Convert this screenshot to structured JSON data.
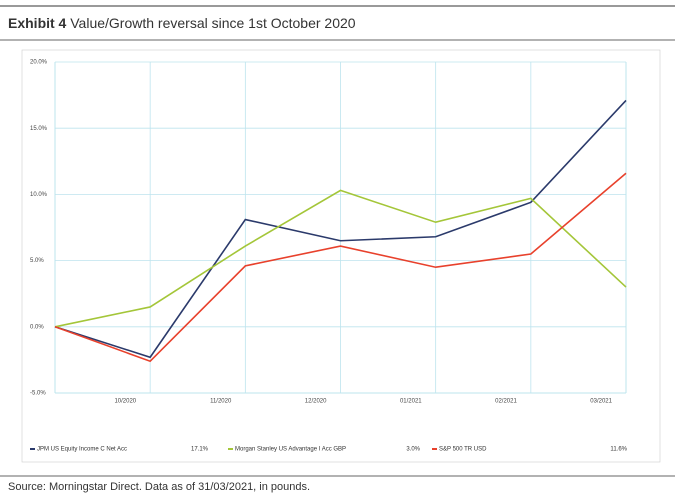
{
  "chart_data": {
    "type": "line",
    "title_bold": "Exhibit 4",
    "title": "Value/Growth reversal since 1st October 2020",
    "source": "Source: Morningstar Direct. Data as of 31/03/2021, in pounds.",
    "categories": [
      null,
      "10/2020",
      "11/2020",
      "12/2020",
      "01/2021",
      "02/2021",
      "03/2021"
    ],
    "series": [
      {
        "name": "JPM US Equity Income C Net Acc",
        "color": "#2b3a6b",
        "values": [
          0,
          -2.3,
          8.1,
          6.5,
          6.8,
          9.4,
          17.1
        ],
        "value_label": "17.1%"
      },
      {
        "name": "Morgan Stanley US Advantage I Acc GBP",
        "color": "#a4c639",
        "values": [
          0,
          1.5,
          6.1,
          10.3,
          7.9,
          9.7,
          3.0
        ],
        "value_label": "3.0%"
      },
      {
        "name": "S&P 500 TR USD",
        "color": "#e8412c",
        "values": [
          0,
          -2.6,
          4.6,
          6.1,
          4.5,
          5.5,
          11.6
        ],
        "value_label": "11.6%"
      }
    ],
    "ylim": [
      -5,
      20
    ],
    "yticks": [
      {
        "value": -5,
        "label": "-5.0%"
      },
      {
        "value": 0,
        "label": "0.0%"
      },
      {
        "value": 5,
        "label": "5.0%"
      },
      {
        "value": 10,
        "label": "10.0%"
      },
      {
        "value": 15,
        "label": "15.0%"
      },
      {
        "value": 20,
        "label": "20.0%"
      }
    ],
    "grid": true
  }
}
